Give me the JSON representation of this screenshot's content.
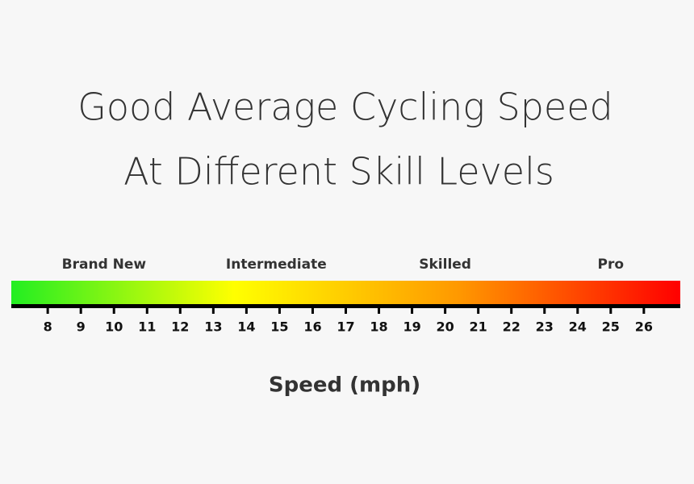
{
  "chart_data": {
    "type": "gradient-scale",
    "title": [
      "Good Average Cycling Speed",
      "At Different Skill Levels"
    ],
    "x_label": "Speed (mph)",
    "xlim": [
      6.9,
      27.1
    ],
    "xticks": [
      8,
      9,
      10,
      11,
      12,
      13,
      14,
      15,
      16,
      17,
      18,
      19,
      20,
      21,
      22,
      23,
      24,
      25,
      26
    ],
    "levels": [
      {
        "label": "Brand New",
        "value": 9.7
      },
      {
        "label": "Intermediate",
        "value": 14.9
      },
      {
        "label": "Skilled",
        "value": 20
      },
      {
        "label": "Pro",
        "value": 25
      }
    ],
    "colors": [
      "#22ee22",
      "#ffff00",
      "#ff9900",
      "#ff0000"
    ]
  }
}
